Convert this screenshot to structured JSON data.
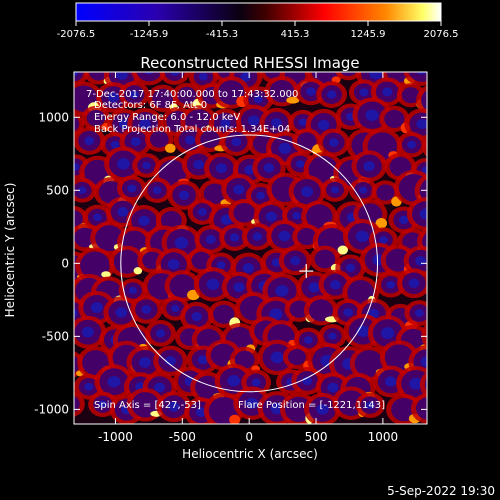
{
  "colorbar": {
    "ticks": [
      "-2076.5",
      "-1245.9",
      "-415.3",
      "415.3",
      "1245.9",
      "2076.5"
    ],
    "range": [
      -2076.5,
      2076.5
    ],
    "colors": [
      "#0000ff",
      "#000000",
      "#ff0000",
      "#ffffff"
    ]
  },
  "chart_data": {
    "type": "heatmap",
    "title": "Reconstructed RHESSI Image",
    "xlabel": "Heliocentric X (arcsec)",
    "ylabel": "Heliocentric Y (arcsec)",
    "xlim": [
      -1310,
      1330
    ],
    "ylim": [
      -1100,
      1310
    ],
    "xticks": [
      -1000,
      -500,
      0,
      500,
      1000
    ],
    "yticks": [
      -1000,
      -500,
      0,
      500,
      1000
    ],
    "solar_limb_radius": 960,
    "cross_marker": [
      427,
      -53
    ],
    "annotations": [
      "7-Dec-2017 17:40:00.000 to 17:43:32.000",
      "Detectors: 6F 8F, Att 0",
      "Energy Range: 6.0 - 12.0 keV",
      "Back Projection    Total counts: 1.34E+04"
    ],
    "spin_axis_label": "Spin Axis = [427,-53]",
    "flare_position_label": "Flare Position = [-1221,1143]",
    "colormap": [
      "#000000",
      "#440066",
      "#c00000",
      "#ff3300",
      "#ff9900",
      "#ffff88"
    ]
  },
  "footer": {
    "timestamp": "5-Sep-2022 19:30"
  }
}
